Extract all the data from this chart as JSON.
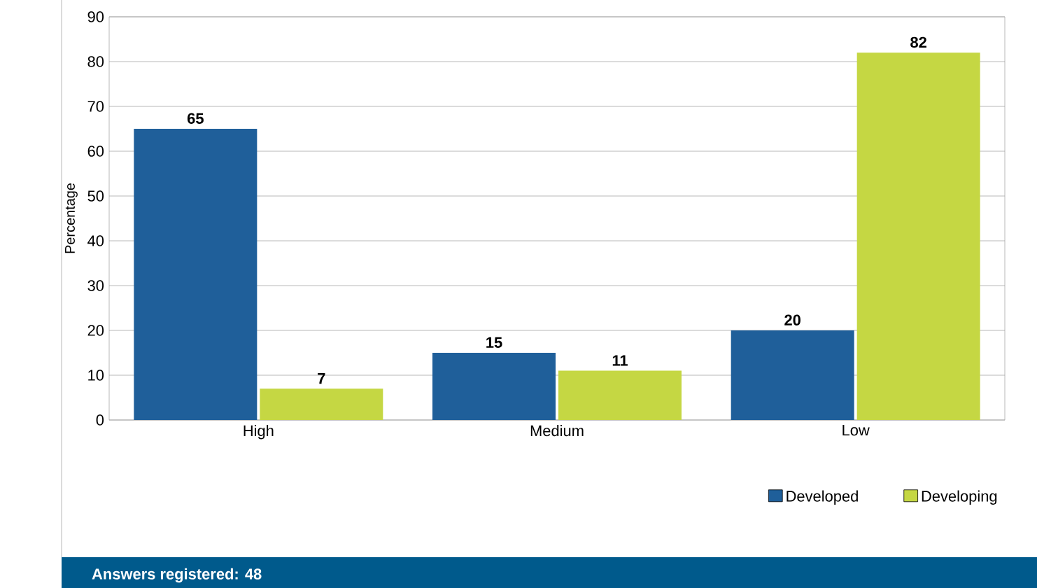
{
  "chart_data": {
    "type": "bar",
    "ylabel": "Percentage",
    "categories": [
      "High",
      "Medium",
      "Low"
    ],
    "series": [
      {
        "name": "Developed",
        "color": "#1f5f9a",
        "values": [
          65,
          15,
          20
        ]
      },
      {
        "name": "Developing",
        "color": "#c5d743",
        "values": [
          7,
          11,
          82
        ]
      }
    ],
    "ylim": [
      0,
      90
    ],
    "yticks": [
      0,
      10,
      20,
      30,
      40,
      50,
      60,
      70,
      80,
      90
    ],
    "grid": "y",
    "legend": "bottom right",
    "data_labels": true,
    "annotations": [
      "Answers registered: 48"
    ]
  }
}
